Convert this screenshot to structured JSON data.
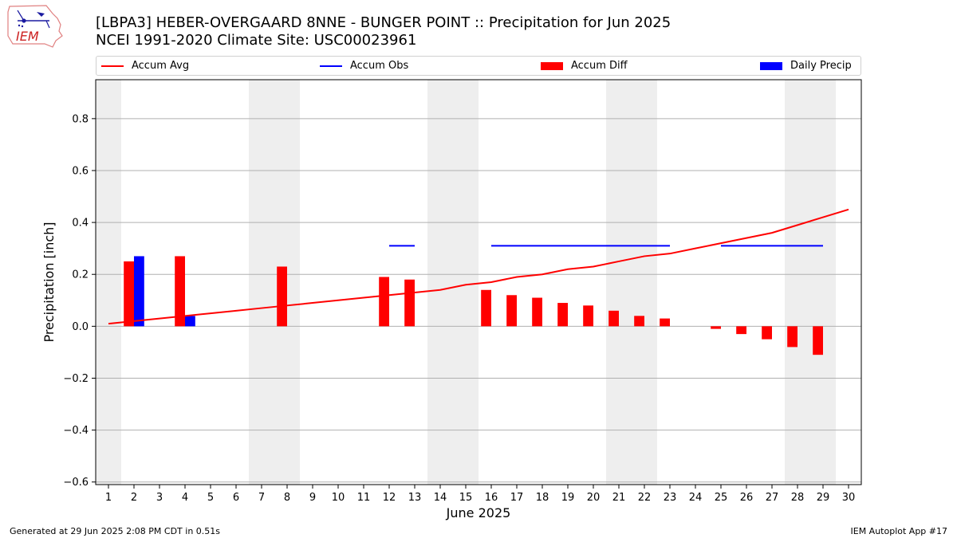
{
  "header": {
    "title_line1": "[LBPA3] HEBER-OVERGAARD 8NNE - BUNGER POINT :: Precipitation for Jun 2025",
    "title_line2": "NCEI 1991-2020 Climate Site: USC00023961",
    "logo_text": "IEM"
  },
  "footer": {
    "left": "Generated at 29 Jun 2025 2:08 PM CDT in 0.51s",
    "right": "IEM Autoplot App #17"
  },
  "colors": {
    "accum_avg": "#ff0000",
    "accum_obs": "#0000ff",
    "accum_diff": "#ff0000",
    "daily_precip": "#0000ff",
    "weekend_band": "#eeeeee",
    "grid": "#b0b0b0"
  },
  "chart_data": {
    "type": "bar",
    "title": "[LBPA3] HEBER-OVERGAARD 8NNE - BUNGER POINT :: Precipitation for Jun 2025",
    "xlabel": "June 2025",
    "ylabel": "Precipitation [inch]",
    "xlim": [
      0.5,
      30.5
    ],
    "ylim": [
      -0.61,
      0.95
    ],
    "xticks": [
      1,
      2,
      3,
      4,
      5,
      6,
      7,
      8,
      9,
      10,
      11,
      12,
      13,
      14,
      15,
      16,
      17,
      18,
      19,
      20,
      21,
      22,
      23,
      24,
      25,
      26,
      27,
      28,
      29,
      30
    ],
    "yticks": [
      -0.6,
      -0.4,
      -0.2,
      0.0,
      0.2,
      0.4,
      0.6,
      0.8
    ],
    "ytick_labels": [
      "−0.6",
      "−0.4",
      "−0.2",
      "0.0",
      "0.2",
      "0.4",
      "0.6",
      "0.8"
    ],
    "grid": "horizontal",
    "legend_position": "top",
    "weekend_bands": [
      [
        0.5,
        1.5
      ],
      [
        6.5,
        8.5
      ],
      [
        13.5,
        15.5
      ],
      [
        20.5,
        22.5
      ],
      [
        27.5,
        29.5
      ]
    ],
    "legend": [
      {
        "name": "Accum Avg",
        "kind": "line",
        "color": "#ff0000"
      },
      {
        "name": "Accum Obs",
        "kind": "line",
        "color": "#0000ff"
      },
      {
        "name": "Accum Diff",
        "kind": "bar",
        "color": "#ff0000"
      },
      {
        "name": "Daily Precip",
        "kind": "bar",
        "color": "#0000ff"
      }
    ],
    "series": [
      {
        "name": "Accum Avg",
        "kind": "line",
        "x": [
          1,
          2,
          3,
          4,
          5,
          6,
          7,
          8,
          9,
          10,
          11,
          12,
          13,
          14,
          15,
          16,
          17,
          18,
          19,
          20,
          21,
          22,
          23,
          24,
          25,
          26,
          27,
          28,
          29,
          30
        ],
        "values": [
          0.01,
          0.02,
          0.03,
          0.04,
          0.05,
          0.06,
          0.07,
          0.08,
          0.09,
          0.1,
          0.11,
          0.12,
          0.13,
          0.14,
          0.16,
          0.17,
          0.19,
          0.2,
          0.22,
          0.23,
          0.25,
          0.27,
          0.28,
          0.3,
          0.32,
          0.34,
          0.36,
          0.39,
          0.42,
          0.45
        ]
      },
      {
        "name": "Accum Obs",
        "kind": "step",
        "segments": [
          {
            "x": [
              12,
              13
            ],
            "value": 0.31
          },
          {
            "x": [
              16,
              23
            ],
            "value": 0.31
          },
          {
            "x": [
              25,
              29
            ],
            "value": 0.31
          }
        ]
      },
      {
        "name": "Accum Diff",
        "kind": "bar",
        "x": [
          2,
          4,
          8,
          12,
          13,
          16,
          17,
          18,
          19,
          20,
          21,
          22,
          23,
          25,
          26,
          27,
          28,
          29
        ],
        "values": [
          0.25,
          0.27,
          0.23,
          0.19,
          0.18,
          0.14,
          0.12,
          0.11,
          0.09,
          0.08,
          0.06,
          0.04,
          0.03,
          -0.01,
          -0.03,
          -0.05,
          -0.08,
          -0.11
        ]
      },
      {
        "name": "Daily Precip",
        "kind": "bar",
        "x": [
          2,
          4
        ],
        "values": [
          0.27,
          0.04
        ]
      }
    ]
  }
}
